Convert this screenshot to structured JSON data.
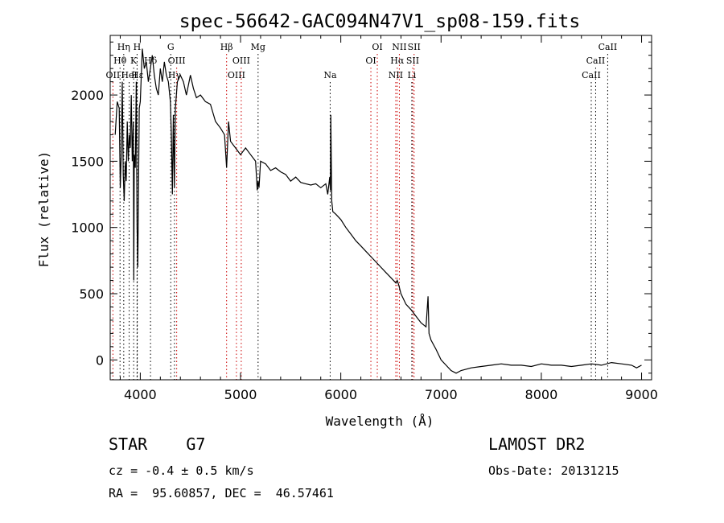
{
  "chart_data": {
    "type": "line",
    "title": "spec-56642-GAC094N47V1_sp08-159.fits",
    "xlabel": "Wavelength (Å)",
    "ylabel": "Flux (relative)",
    "xlim": [
      3700,
      9100
    ],
    "ylim": [
      -150,
      2450
    ],
    "xticks": [
      4000,
      5000,
      6000,
      7000,
      8000,
      9000
    ],
    "yticks": [
      0,
      500,
      1000,
      1500,
      2000
    ],
    "grid": false,
    "line_color": "#000000",
    "marker_color_emission": "#cc0000",
    "marker_color_absorption": "#000000",
    "series": [
      {
        "x": [
          3750,
          3770,
          3790,
          3800,
          3810,
          3820,
          3830,
          3840,
          3850,
          3860,
          3870,
          3880,
          3890,
          3900,
          3910,
          3920,
          3930,
          3935,
          3940,
          3950,
          3960,
          3968,
          3975,
          3990,
          4000,
          4020,
          4040,
          4060,
          4080,
          4100,
          4120,
          4140,
          4160,
          4180,
          4200,
          4220,
          4240,
          4260,
          4280,
          4300,
          4310,
          4320,
          4330,
          4340,
          4350,
          4370,
          4400,
          4430,
          4460,
          4500,
          4530,
          4560,
          4600,
          4650,
          4700,
          4750,
          4800,
          4840,
          4861,
          4880,
          4900,
          4950,
          5000,
          5050,
          5100,
          5150,
          5167,
          5175,
          5184,
          5200,
          5250,
          5300,
          5350,
          5400,
          5450,
          5500,
          5550,
          5600,
          5650,
          5700,
          5750,
          5800,
          5850,
          5870,
          5890,
          5896,
          5900,
          5910,
          5920,
          5950,
          6000,
          6050,
          6100,
          6150,
          6200,
          6250,
          6300,
          6350,
          6400,
          6450,
          6500,
          6550,
          6563,
          6580,
          6600,
          6650,
          6700,
          6750,
          6800,
          6850,
          6870,
          6880,
          6900,
          6950,
          7000,
          7050,
          7100,
          7150,
          7200,
          7300,
          7400,
          7500,
          7600,
          7700,
          7800,
          7900,
          8000,
          8100,
          8200,
          8300,
          8400,
          8500,
          8600,
          8700,
          8800,
          8900,
          8950,
          9000
        ],
        "y": [
          1700,
          1950,
          1900,
          1300,
          1550,
          2100,
          1400,
          1200,
          1500,
          1350,
          1800,
          1500,
          1700,
          1600,
          2000,
          1500,
          1800,
          600,
          1550,
          1450,
          2100,
          1000,
          700,
          1900,
          1950,
          2350,
          2200,
          2250,
          2100,
          2200,
          2300,
          2150,
          2050,
          2000,
          2200,
          2100,
          2250,
          2150,
          2100,
          1950,
          1700,
          1250,
          1850,
          1300,
          1900,
          2100,
          2150,
          2100,
          2000,
          2150,
          2050,
          1980,
          2000,
          1950,
          1930,
          1800,
          1750,
          1700,
          1450,
          1800,
          1650,
          1600,
          1550,
          1600,
          1550,
          1500,
          1280,
          1350,
          1300,
          1500,
          1480,
          1430,
          1450,
          1420,
          1400,
          1350,
          1380,
          1340,
          1330,
          1320,
          1330,
          1300,
          1330,
          1250,
          1380,
          1280,
          1850,
          1200,
          1120,
          1100,
          1060,
          1000,
          950,
          900,
          860,
          820,
          780,
          740,
          700,
          660,
          620,
          580,
          600,
          560,
          500,
          420,
          380,
          330,
          280,
          250,
          480,
          200,
          150,
          80,
          0,
          -40,
          -80,
          -100,
          -80,
          -60,
          -50,
          -40,
          -30,
          -40,
          -40,
          -50,
          -30,
          -40,
          -40,
          -50,
          -40,
          -30,
          -40,
          -20,
          -30,
          -40,
          -60,
          -40
        ]
      }
    ],
    "lines": [
      {
        "name": "OII",
        "wl": 3727,
        "row": 2,
        "kind": "emission"
      },
      {
        "name": "Hθ",
        "wl": 3798,
        "row": 1,
        "kind": "absorption"
      },
      {
        "name": "Hη",
        "wl": 3835,
        "row": 0,
        "kind": "absorption"
      },
      {
        "name": "HeI",
        "wl": 3889,
        "row": 2,
        "kind": "absorption"
      },
      {
        "name": "K",
        "wl": 3934,
        "row": 1,
        "kind": "absorption"
      },
      {
        "name": "H",
        "wl": 3968,
        "row": 0,
        "kind": "absorption"
      },
      {
        "name": "Hε",
        "wl": 3970,
        "row": 2,
        "kind": "absorption"
      },
      {
        "name": "Hδ",
        "wl": 4102,
        "row": 1,
        "kind": "absorption"
      },
      {
        "name": "G",
        "wl": 4304,
        "row": 0,
        "kind": "absorption"
      },
      {
        "name": "Hγ",
        "wl": 4341,
        "row": 2,
        "kind": "absorption"
      },
      {
        "name": "OIII",
        "wl": 4363,
        "row": 1,
        "kind": "emission"
      },
      {
        "name": "Hβ",
        "wl": 4861,
        "row": 0,
        "kind": "emission"
      },
      {
        "name": "OIII",
        "wl": 4959,
        "row": 2,
        "kind": "emission"
      },
      {
        "name": "OIII",
        "wl": 5007,
        "row": 1,
        "kind": "emission"
      },
      {
        "name": "Mg",
        "wl": 5175,
        "row": 0,
        "kind": "absorption"
      },
      {
        "name": "Na",
        "wl": 5894,
        "row": 2,
        "kind": "absorption"
      },
      {
        "name": "OI",
        "wl": 6300,
        "row": 1,
        "kind": "emission"
      },
      {
        "name": "OI",
        "wl": 6364,
        "row": 0,
        "kind": "emission"
      },
      {
        "name": "NII",
        "wl": 6548,
        "row": 2,
        "kind": "emission"
      },
      {
        "name": "Hα",
        "wl": 6563,
        "row": 1,
        "kind": "emission"
      },
      {
        "name": "NII",
        "wl": 6584,
        "row": 0,
        "kind": "emission"
      },
      {
        "name": "Li",
        "wl": 6708,
        "row": 2,
        "kind": "absorption"
      },
      {
        "name": "SII",
        "wl": 6717,
        "row": 1,
        "kind": "emission"
      },
      {
        "name": "SII",
        "wl": 6731,
        "row": 0,
        "kind": "emission"
      },
      {
        "name": "CaII",
        "wl": 8498,
        "row": 2,
        "kind": "absorption"
      },
      {
        "name": "CaII",
        "wl": 8542,
        "row": 1,
        "kind": "absorption"
      },
      {
        "name": "CaII",
        "wl": 8662,
        "row": 0,
        "kind": "absorption"
      }
    ]
  },
  "footer": {
    "classification": "STAR    G7",
    "cz": "cz = -0.4 ± 0.5 km/s",
    "radec": "RA =  95.60857, DEC =  46.57461",
    "survey": "LAMOST DR2",
    "obs_date": "Obs-Date: 20131215"
  }
}
